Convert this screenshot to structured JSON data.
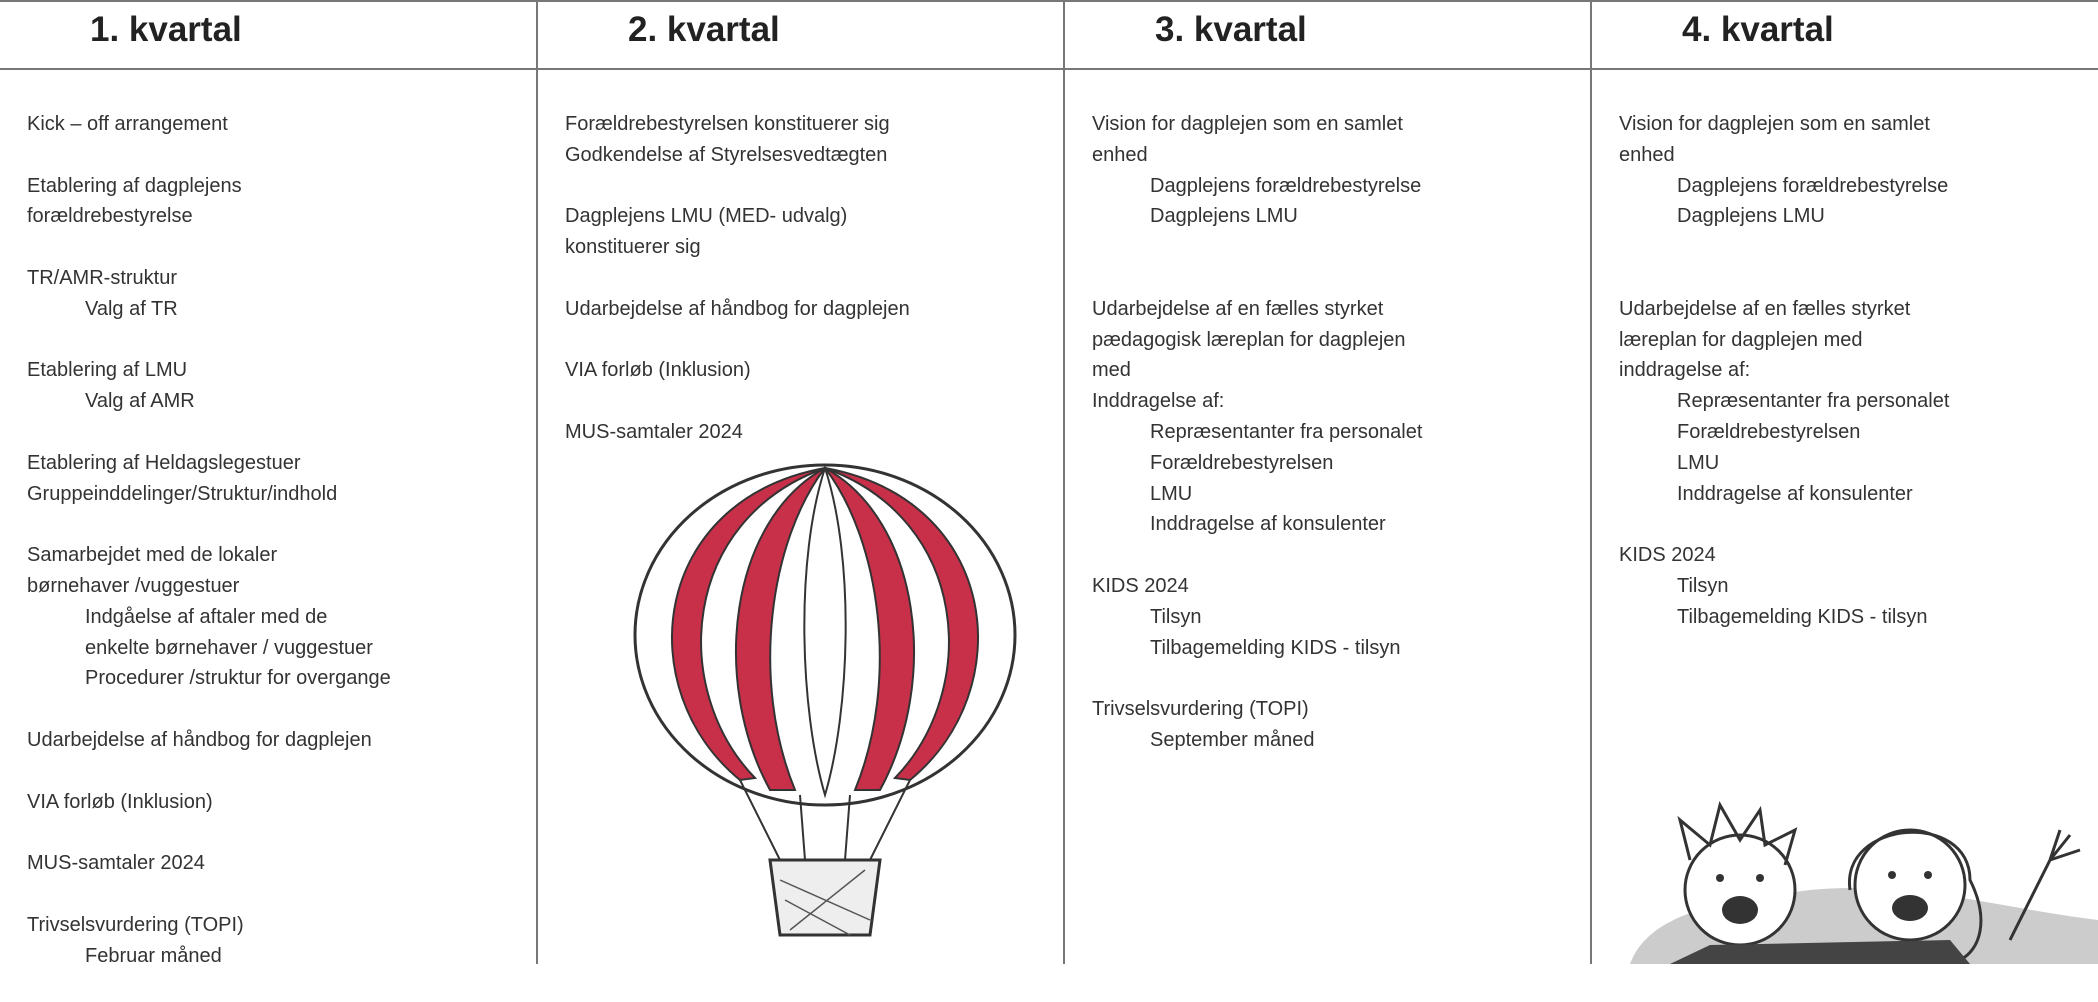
{
  "columns": [
    {
      "title": "1. kvartal",
      "blocks": [
        {
          "lines": [
            "Kick – off arrangement"
          ]
        },
        {
          "lines": [
            "Etablering af dagplejens",
            "forældrebestyrelse"
          ]
        },
        {
          "lines": [
            "TR/AMR-struktur"
          ],
          "sub": [
            "Valg af TR"
          ]
        },
        {
          "lines": [
            "Etablering af LMU"
          ],
          "sub": [
            "Valg af AMR"
          ]
        },
        {
          "lines": [
            "Etablering af Heldagslegestuer",
            "Gruppeinddelinger/Struktur/indhold"
          ]
        },
        {
          "lines": [
            "Samarbejdet med de lokaler",
            "børnehaver /vuggestuer"
          ],
          "sub": [
            "Indgåelse af aftaler med de",
            "enkelte børnehaver / vuggestuer",
            "Procedurer /struktur for overgange"
          ]
        },
        {
          "lines": [
            "Udarbejdelse af håndbog for dagplejen"
          ]
        },
        {
          "lines": [
            "VIA forløb (Inklusion)"
          ]
        },
        {
          "lines": [
            "MUS-samtaler 2024"
          ]
        },
        {
          "lines": [
            "Trivselsvurdering (TOPI)"
          ],
          "sub": [
            "Februar måned"
          ]
        }
      ]
    },
    {
      "title": "2. kvartal",
      "blocks": [
        {
          "lines": [
            "Forældrebestyrelsen konstituerer sig",
            "Godkendelse af Styrelsesvedtægten"
          ]
        },
        {
          "lines": [
            "Dagplejens LMU (MED- udvalg)",
            "konstituerer sig"
          ]
        },
        {
          "lines": [
            "Udarbejdelse af håndbog for dagplejen"
          ]
        },
        {
          "lines": [
            "VIA forløb (Inklusion)"
          ]
        },
        {
          "lines": [
            "MUS-samtaler 2024"
          ]
        }
      ]
    },
    {
      "title": "3. kvartal",
      "blocks": [
        {
          "lines": [
            "Vision for dagplejen som en samlet",
            "enhed"
          ],
          "sub": [
            "Dagplejens forældrebestyrelse",
            "Dagplejens LMU"
          ]
        },
        {
          "lines": [
            "Udarbejdelse af en fælles styrket",
            "pædagogisk læreplan for dagplejen",
            "med",
            "Inddragelse af:"
          ],
          "sub": [
            "Repræsentanter fra personalet",
            "Forældrebestyrelsen",
            "LMU",
            "Inddragelse af konsulenter"
          ]
        },
        {
          "lines": [
            "KIDS 2024"
          ],
          "sub": [
            "Tilsyn",
            "Tilbagemelding KIDS - tilsyn"
          ]
        },
        {
          "lines": [
            "Trivselsvurdering (TOPI)"
          ],
          "sub": [
            "September måned"
          ]
        }
      ]
    },
    {
      "title": "4. kvartal",
      "blocks": [
        {
          "lines": [
            "Vision for dagplejen som en samlet",
            "enhed"
          ],
          "sub": [
            "Dagplejens forældrebestyrelse",
            "Dagplejens LMU"
          ]
        },
        {
          "lines": [
            "Udarbejdelse af en fælles styrket",
            "læreplan for dagplejen med",
            "inddragelse af:"
          ],
          "sub": [
            "Repræsentanter fra personalet",
            "Forældrebestyrelsen",
            "LMU",
            "Inddragelse af konsulenter"
          ]
        },
        {
          "lines": [
            "KIDS 2024"
          ],
          "sub": [
            "Tilsyn",
            "Tilbagemelding KIDS - tilsyn"
          ]
        }
      ]
    }
  ]
}
